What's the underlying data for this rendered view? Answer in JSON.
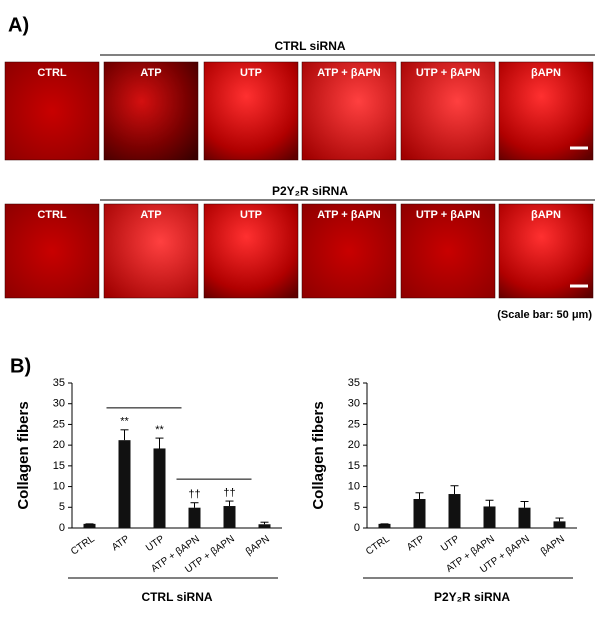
{
  "panel_a": {
    "label": "A)",
    "groups": [
      {
        "title": "CTRL siRNA",
        "images": [
          "CTRL",
          "ATP",
          "UTP",
          "ATP + βAPN",
          "UTP + βAPN",
          "βAPN"
        ]
      },
      {
        "title": "P2Y₂R siRNA",
        "images": [
          "CTRL",
          "ATP",
          "UTP",
          "ATP + βAPN",
          "UTP + βAPN",
          "βAPN"
        ]
      }
    ],
    "scale_note": "(Scale bar: 50 μm)"
  },
  "panel_b_label": "B)",
  "chart_data": [
    {
      "type": "bar",
      "ylabel": "Collagen fibers",
      "group_label": "CTRL siRNA",
      "categories": [
        "CTRL",
        "ATP",
        "UTP",
        "ATP + βAPN",
        "UTP + βAPN",
        "βAPN"
      ],
      "values": [
        1,
        21.2,
        19.2,
        4.9,
        5.3,
        0.9
      ],
      "errors": [
        0,
        2.5,
        2.5,
        1.2,
        1.2,
        0.5
      ],
      "annotations": [
        null,
        "**",
        "**",
        "††",
        "††",
        null
      ],
      "color": "#111111",
      "ylim": [
        0,
        35
      ],
      "yticks": [
        0,
        5,
        10,
        15,
        20,
        25,
        30,
        35
      ]
    },
    {
      "type": "bar",
      "ylabel": "Collagen fibers",
      "group_label": "P2Y₂R siRNA",
      "categories": [
        "CTRL",
        "ATP",
        "UTP",
        "ATP + βAPN",
        "UTP + βAPN",
        "βAPN"
      ],
      "values": [
        1,
        7,
        8.2,
        5.2,
        4.9,
        1.6
      ],
      "errors": [
        0,
        1.5,
        2,
        1.5,
        1.5,
        0.8
      ],
      "color": "#111111",
      "ylim": [
        0,
        35
      ],
      "yticks": [
        0,
        5,
        10,
        15,
        20,
        25,
        30,
        35
      ]
    }
  ]
}
